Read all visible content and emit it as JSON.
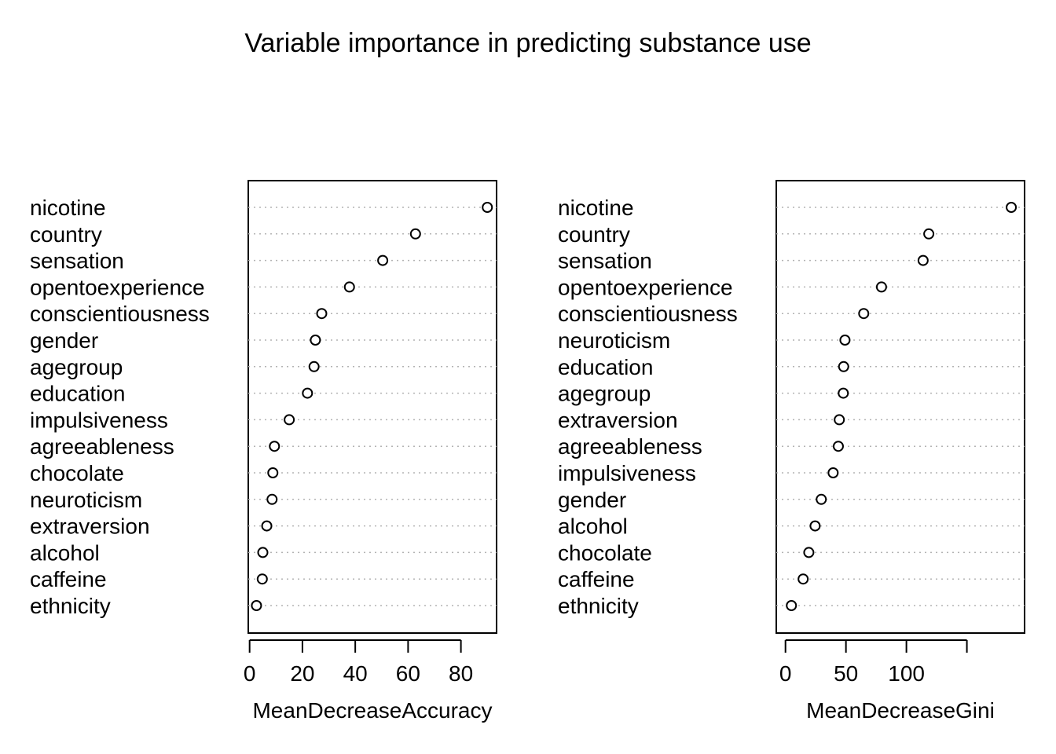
{
  "title": "Variable importance in predicting substance use",
  "chart_data": [
    {
      "type": "dotchart",
      "xlabel": "MeanDecreaseAccuracy",
      "ylabel": "",
      "xlim": [
        -0.5,
        93.5
      ],
      "xticks": [
        0,
        20,
        40,
        60,
        80
      ],
      "grid": "dotted horizontal",
      "categories": [
        "nicotine",
        "country",
        "sensation",
        "opentoexperience",
        "conscientiousness",
        "gender",
        "agegroup",
        "education",
        "impulsiveness",
        "agreeableness",
        "chocolate",
        "neuroticism",
        "extraversion",
        "alcohol",
        "caffeine",
        "ethnicity"
      ],
      "values": [
        90.0,
        62.8,
        50.4,
        37.8,
        27.3,
        24.9,
        24.4,
        21.9,
        15.0,
        9.4,
        8.8,
        8.5,
        6.5,
        5.0,
        4.8,
        2.6
      ]
    },
    {
      "type": "dotchart",
      "xlabel": "MeanDecreaseGini",
      "ylabel": "",
      "xlim": [
        -7.6,
        197.7
      ],
      "xticks": [
        0,
        50,
        100,
        150
      ],
      "xtick_labels": [
        "0",
        "50",
        "100",
        ""
      ],
      "grid": "dotted horizontal",
      "categories": [
        "nicotine",
        "country",
        "sensation",
        "opentoexperience",
        "conscientiousness",
        "neuroticism",
        "education",
        "agegroup",
        "extraversion",
        "agreeableness",
        "impulsiveness",
        "gender",
        "alcohol",
        "chocolate",
        "caffeine",
        "ethnicity"
      ],
      "values": [
        186.7,
        118.5,
        113.8,
        79.4,
        64.7,
        49.2,
        48.1,
        47.8,
        44.5,
        43.7,
        39.4,
        29.6,
        24.5,
        19.3,
        14.6,
        4.9
      ]
    }
  ]
}
